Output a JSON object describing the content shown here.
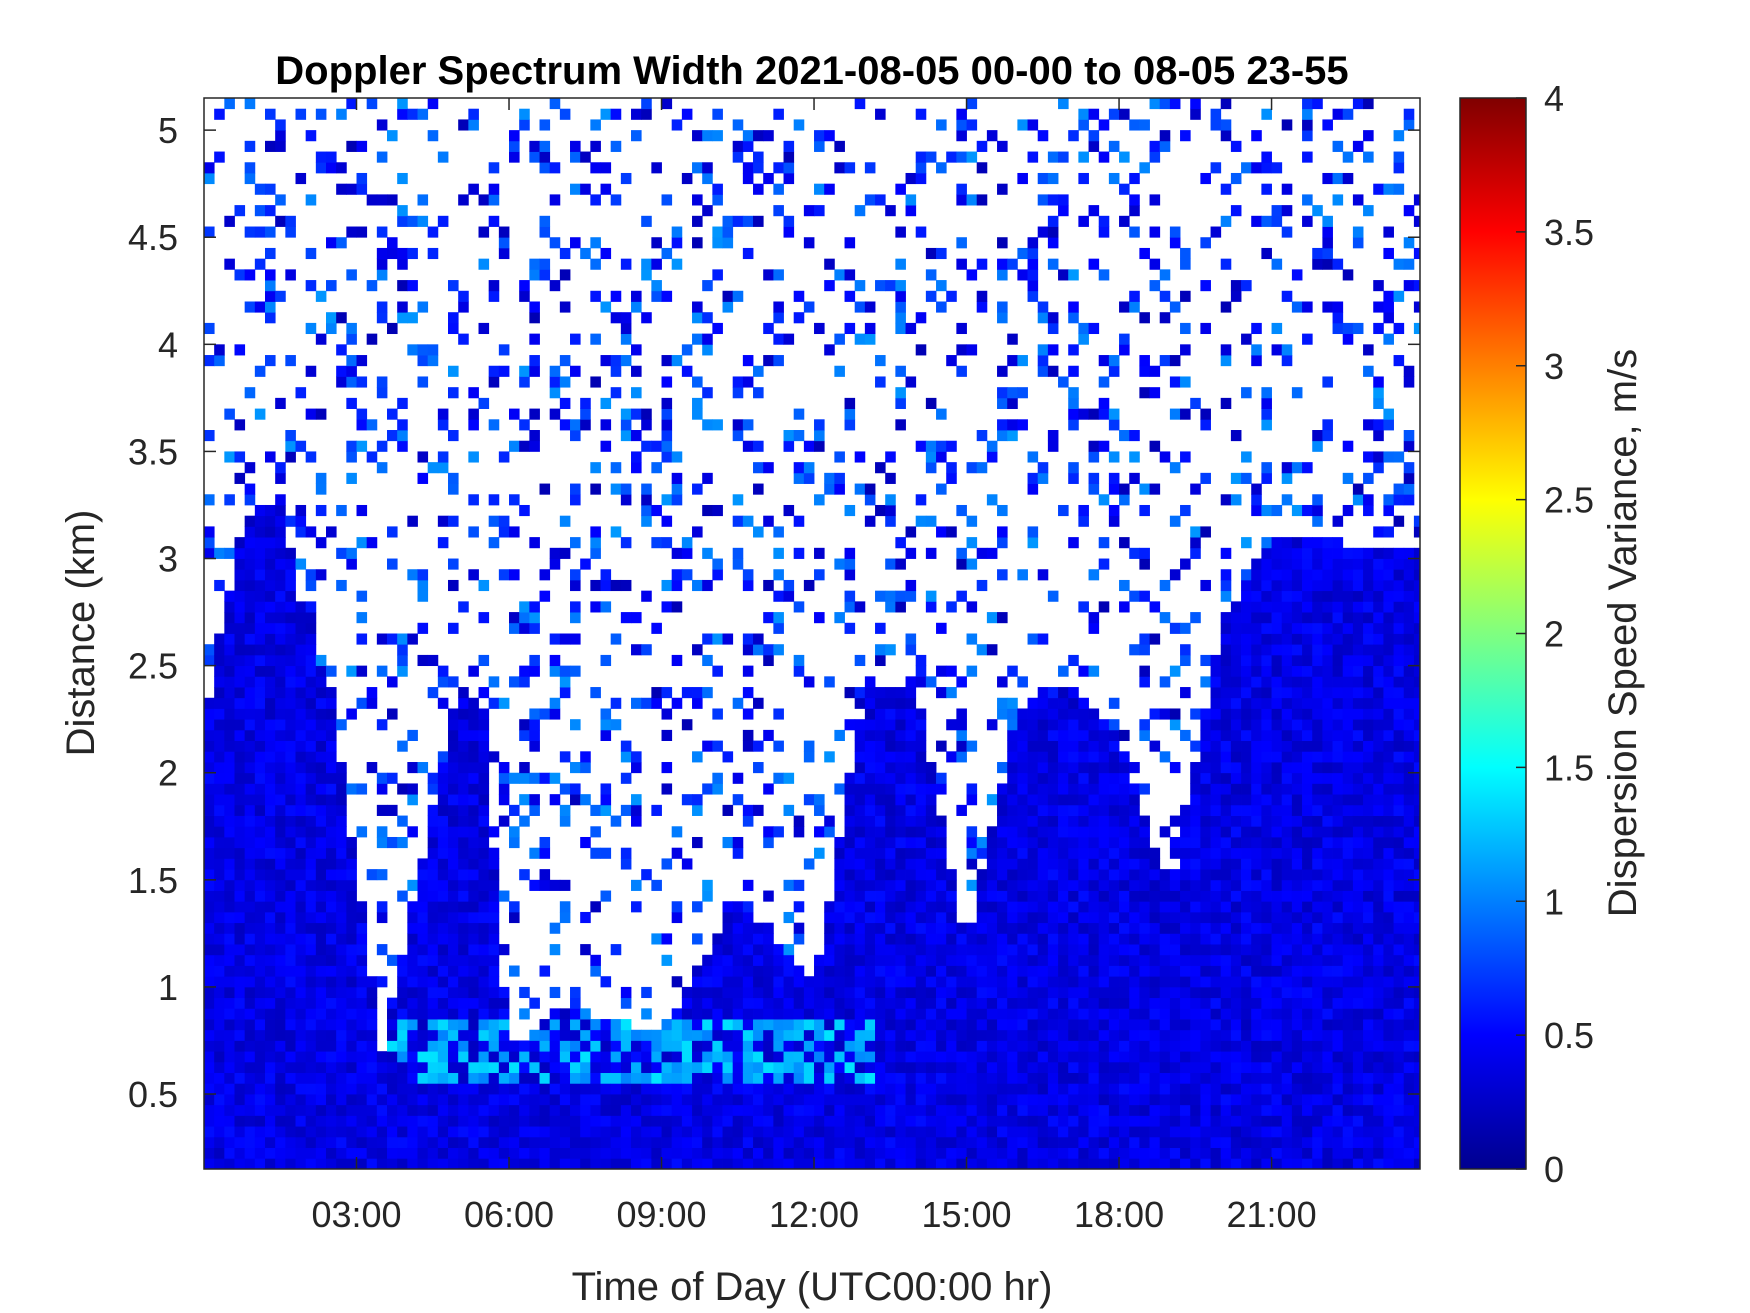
{
  "chart_data": {
    "type": "heatmap",
    "title": "Doppler Spectrum Width 2021-08-05 00-00 to 08-05 23-55",
    "xlabel": "Time of Day (UTC00:00 hr)",
    "ylabel": "Distance (km)",
    "colorbar_label": "Dispersion Speed Variance, m/s",
    "colormap": "jet",
    "xlim_hours": [
      0,
      23.92
    ],
    "ylim_km": [
      0.15,
      5.15
    ],
    "clim": [
      0,
      4
    ],
    "x_ticks": [
      {
        "hour": 3,
        "label": "03:00"
      },
      {
        "hour": 6,
        "label": "06:00"
      },
      {
        "hour": 9,
        "label": "09:00"
      },
      {
        "hour": 12,
        "label": "12:00"
      },
      {
        "hour": 15,
        "label": "15:00"
      },
      {
        "hour": 18,
        "label": "18:00"
      },
      {
        "hour": 21,
        "label": "21:00"
      }
    ],
    "y_ticks": [
      {
        "km": 0.5,
        "label": "0.5"
      },
      {
        "km": 1,
        "label": "1"
      },
      {
        "km": 1.5,
        "label": "1.5"
      },
      {
        "km": 2,
        "label": "2"
      },
      {
        "km": 2.5,
        "label": "2.5"
      },
      {
        "km": 3,
        "label": "3"
      },
      {
        "km": 3.5,
        "label": "3.5"
      },
      {
        "km": 4,
        "label": "4"
      },
      {
        "km": 4.5,
        "label": "4.5"
      },
      {
        "km": 5,
        "label": "5"
      }
    ],
    "colorbar_ticks": [
      {
        "value": 0,
        "label": "0"
      },
      {
        "value": 0.5,
        "label": "0.5"
      },
      {
        "value": 1,
        "label": "1"
      },
      {
        "value": 1.5,
        "label": "1.5"
      },
      {
        "value": 2,
        "label": "2"
      },
      {
        "value": 2.5,
        "label": "2.5"
      },
      {
        "value": 3,
        "label": "3"
      },
      {
        "value": 3.5,
        "label": "3.5"
      },
      {
        "value": 4,
        "label": "4"
      }
    ],
    "signal_profile": {
      "description_hours_to_top_km": [
        [
          0.0,
          2.2
        ],
        [
          0.8,
          3.2
        ],
        [
          1.5,
          3.3
        ],
        [
          2.0,
          2.7
        ],
        [
          2.5,
          2.4
        ],
        [
          3.5,
          0.7
        ],
        [
          5.0,
          2.4
        ],
        [
          5.5,
          2.3
        ],
        [
          6.0,
          0.7
        ],
        [
          7.0,
          0.9
        ],
        [
          9.0,
          0.8
        ],
        [
          10.5,
          1.4
        ],
        [
          12.0,
          1.0
        ],
        [
          13.0,
          2.4
        ],
        [
          14.0,
          2.4
        ],
        [
          15.0,
          1.2
        ],
        [
          16.0,
          2.3
        ],
        [
          17.0,
          2.4
        ],
        [
          18.0,
          2.2
        ],
        [
          19.0,
          1.4
        ],
        [
          20.0,
          2.7
        ],
        [
          21.0,
          3.1
        ],
        [
          23.92,
          3.05
        ]
      ],
      "typical_value_in_signal": 0.4,
      "typical_value_in_noise": 0.2,
      "enhanced_layer": {
        "hours": [
          3.5,
          13.0
        ],
        "km": [
          0.55,
          0.85
        ],
        "value": 1.2
      }
    }
  }
}
